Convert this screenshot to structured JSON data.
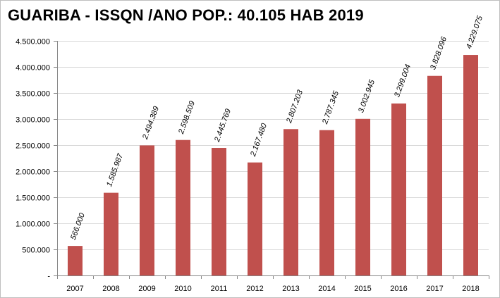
{
  "chart_data": {
    "type": "bar",
    "title": "GUARIBA - ISSQN /ANO POP.: 40.105 HAB 2019",
    "xlabel": "",
    "ylabel": "",
    "categories": [
      "2007",
      "2008",
      "2009",
      "2010",
      "2011",
      "2012",
      "2013",
      "2014",
      "2015",
      "2016",
      "2017",
      "2018"
    ],
    "values": [
      566000,
      1585987,
      2494389,
      2598509,
      2445769,
      2167480,
      2807203,
      2787345,
      3002945,
      3299004,
      3828096,
      4229075
    ],
    "data_labels": [
      "566.000",
      "1.585.987",
      "2.494.389",
      "2.598.509",
      "2.445.769",
      "2.167.480",
      "2.807.203",
      "2.787.345",
      "3.002.945",
      "3.299.004",
      "3.828.096",
      "4.229.075"
    ],
    "ylim": [
      0,
      4500000
    ],
    "y_ticks": [
      0,
      500000,
      1000000,
      1500000,
      2000000,
      2500000,
      3000000,
      3500000,
      4000000,
      4500000
    ],
    "y_tick_labels": [
      "-",
      "500.000",
      "1.000.000",
      "1.500.000",
      "2.000.000",
      "2.500.000",
      "3.000.000",
      "3.500.000",
      "4.000.000",
      "4.500.000"
    ],
    "grid": true,
    "legend": "none",
    "bar_color": "#c0504d",
    "grid_color": "#d9d9d9",
    "axis_color": "#868686"
  }
}
